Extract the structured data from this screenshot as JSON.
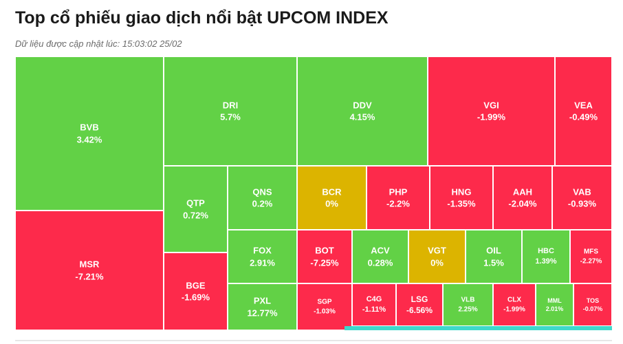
{
  "header": {
    "title": "Top cổ phiếu giao dịch nổi bật UPCOM INDEX",
    "updated": "Dữ liệu được cập nhật lúc: 15:03:02 25/02"
  },
  "colors": {
    "up": "#62d146",
    "down": "#fd2a4b",
    "flat": "#dcb400"
  },
  "chart_data": {
    "type": "treemap",
    "items": [
      {
        "ticker": "BVB",
        "change": "3.42%",
        "value": 3.42
      },
      {
        "ticker": "MSR",
        "change": "-7.21%",
        "value": -7.21
      },
      {
        "ticker": "DRI",
        "change": "5.7%",
        "value": 5.7
      },
      {
        "ticker": "DDV",
        "change": "4.15%",
        "value": 4.15
      },
      {
        "ticker": "VGI",
        "change": "-1.99%",
        "value": -1.99
      },
      {
        "ticker": "VEA",
        "change": "-0.49%",
        "value": -0.49
      },
      {
        "ticker": "QTP",
        "change": "0.72%",
        "value": 0.72
      },
      {
        "ticker": "QNS",
        "change": "0.2%",
        "value": 0.2
      },
      {
        "ticker": "BCR",
        "change": "0%",
        "value": 0
      },
      {
        "ticker": "PHP",
        "change": "-2.2%",
        "value": -2.2
      },
      {
        "ticker": "HNG",
        "change": "-1.35%",
        "value": -1.35
      },
      {
        "ticker": "AAH",
        "change": "-2.04%",
        "value": -2.04
      },
      {
        "ticker": "VAB",
        "change": "-0.93%",
        "value": -0.93
      },
      {
        "ticker": "BGE",
        "change": "-1.69%",
        "value": -1.69
      },
      {
        "ticker": "FOX",
        "change": "2.91%",
        "value": 2.91
      },
      {
        "ticker": "BOT",
        "change": "-7.25%",
        "value": -7.25
      },
      {
        "ticker": "ACV",
        "change": "0.28%",
        "value": 0.28
      },
      {
        "ticker": "VGT",
        "change": "0%",
        "value": 0
      },
      {
        "ticker": "OIL",
        "change": "1.5%",
        "value": 1.5
      },
      {
        "ticker": "HBC",
        "change": "1.39%",
        "value": 1.39
      },
      {
        "ticker": "MFS",
        "change": "-2.27%",
        "value": -2.27
      },
      {
        "ticker": "PXL",
        "change": "12.77%",
        "value": 12.77
      },
      {
        "ticker": "SGP",
        "change": "-1.03%",
        "value": -1.03
      },
      {
        "ticker": "C4G",
        "change": "-1.11%",
        "value": -1.11
      },
      {
        "ticker": "LSG",
        "change": "-6.56%",
        "value": -6.56
      },
      {
        "ticker": "VLB",
        "change": "2.25%",
        "value": 2.25
      },
      {
        "ticker": "CLX",
        "change": "-1.99%",
        "value": -1.99
      },
      {
        "ticker": "MML",
        "change": "2.01%",
        "value": 2.01
      },
      {
        "ticker": "TOS",
        "change": "-0.07%",
        "value": -0.07
      }
    ]
  }
}
